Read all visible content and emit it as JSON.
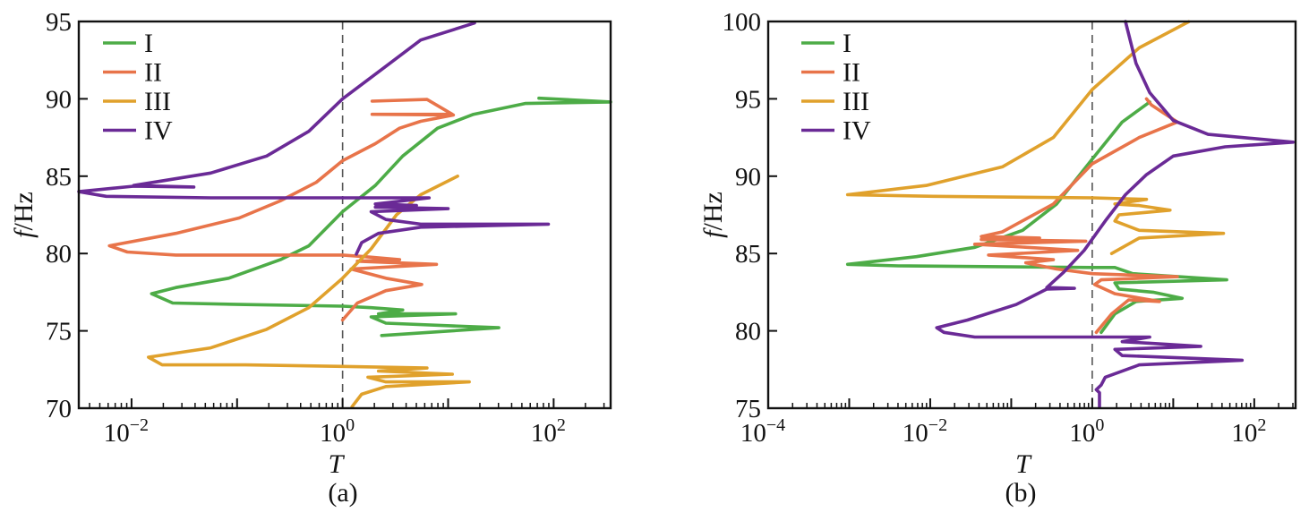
{
  "chart_data": [
    {
      "type": "line",
      "panel_caption": "(a)",
      "xlabel": "T",
      "ylabel_italic": "f",
      "ylabel_unit": "/Hz",
      "xscale": "log",
      "xlim_log10": [
        -2.5,
        2.54
      ],
      "ylim": [
        70,
        95
      ],
      "yticks": [
        "70",
        "75",
        "80",
        "85",
        "90",
        "95"
      ],
      "xticks": [
        {
          "base": "10",
          "exp": "−2",
          "log10": -2
        },
        {
          "base": "10",
          "exp": "0",
          "log10": 0
        },
        {
          "base": "10",
          "exp": "2",
          "log10": 2
        }
      ],
      "reference_line_T": 1,
      "legend_position": "top-left",
      "series": [
        {
          "name": "I",
          "color": "#4dac47",
          "points_log10T_f": [
            [
              1.86,
              90.04
            ],
            [
              2.54,
              89.8
            ],
            [
              1.73,
              89.7
            ],
            [
              1.24,
              89.0
            ],
            [
              0.9,
              88.1
            ],
            [
              0.57,
              86.3
            ],
            [
              0.31,
              84.4
            ],
            [
              0,
              82.7
            ],
            [
              -0.32,
              80.5
            ],
            [
              -0.59,
              79.6
            ],
            [
              -1.08,
              78.4
            ],
            [
              -1.58,
              77.8
            ],
            [
              -1.81,
              77.4
            ],
            [
              -1.61,
              76.8
            ],
            [
              -0.92,
              76.7
            ],
            [
              0,
              76.6
            ],
            [
              0.27,
              76.5
            ],
            [
              0.57,
              76.35
            ],
            [
              0.34,
              76.1
            ],
            [
              1.07,
              76.1
            ],
            [
              0.27,
              75.9
            ],
            [
              0.41,
              75.5
            ],
            [
              1.48,
              75.2
            ],
            [
              0.37,
              74.7
            ]
          ]
        },
        {
          "name": "II",
          "color": "#e8744a",
          "points_log10T_f": [
            [
              0.28,
              89.85
            ],
            [
              0.8,
              89.96
            ],
            [
              1.04,
              89.0
            ],
            [
              0.28,
              89.0
            ],
            [
              1.05,
              88.95
            ],
            [
              0.74,
              88.55
            ],
            [
              0.54,
              88.1
            ],
            [
              0.31,
              87.1
            ],
            [
              0,
              86.0
            ],
            [
              -0.25,
              84.6
            ],
            [
              -0.59,
              83.4
            ],
            [
              -0.98,
              82.3
            ],
            [
              -1.58,
              81.3
            ],
            [
              -2.21,
              80.5
            ],
            [
              -2.04,
              80.1
            ],
            [
              -1.58,
              79.9
            ],
            [
              0,
              79.9
            ],
            [
              0.21,
              79.8
            ],
            [
              0.54,
              79.6
            ],
            [
              0.14,
              79.5
            ],
            [
              0.89,
              79.3
            ],
            [
              0.08,
              79.0
            ],
            [
              0.41,
              78.4
            ],
            [
              0.75,
              78.0
            ],
            [
              0.41,
              77.6
            ],
            [
              0.14,
              76.8
            ],
            [
              0,
              75.7
            ]
          ]
        },
        {
          "name": "III",
          "color": "#e0a12c",
          "points_log10T_f": [
            [
              1.09,
              85.0
            ],
            [
              0.74,
              83.8
            ],
            [
              0.51,
              82.5
            ],
            [
              0.27,
              80.3
            ],
            [
              0,
              78.4
            ],
            [
              -0.32,
              76.5
            ],
            [
              -0.72,
              75.1
            ],
            [
              -1.25,
              73.9
            ],
            [
              -1.84,
              73.3
            ],
            [
              -1.71,
              72.8
            ],
            [
              -0.92,
              72.8
            ],
            [
              0,
              72.7
            ],
            [
              0.8,
              72.6
            ],
            [
              0.34,
              72.4
            ],
            [
              1.04,
              72.2
            ],
            [
              0.24,
              72.0
            ],
            [
              0.41,
              71.7
            ],
            [
              1.2,
              71.7
            ],
            [
              0.41,
              71.4
            ],
            [
              0.18,
              70.9
            ],
            [
              0.09,
              70.1
            ]
          ]
        },
        {
          "name": "IV",
          "color": "#6a2a96",
          "points_log10T_f": [
            [
              1.25,
              94.9
            ],
            [
              0.74,
              93.8
            ],
            [
              0.41,
              92.1
            ],
            [
              0,
              90.0
            ],
            [
              -0.32,
              87.9
            ],
            [
              -0.72,
              86.3
            ],
            [
              -1.25,
              85.2
            ],
            [
              -1.98,
              84.4
            ],
            [
              -1.41,
              84.3
            ],
            [
              -1.98,
              84.35
            ],
            [
              -2.5,
              84.0
            ],
            [
              -2.24,
              83.7
            ],
            [
              -1.25,
              83.6
            ],
            [
              0,
              83.6
            ],
            [
              0.82,
              83.6
            ],
            [
              0.31,
              83.2
            ],
            [
              0.7,
              83.1
            ],
            [
              0.31,
              83.0
            ],
            [
              1.0,
              82.9
            ],
            [
              0.27,
              82.7
            ],
            [
              0.41,
              82.2
            ],
            [
              0.74,
              81.9
            ],
            [
              1.95,
              81.9
            ],
            [
              0.74,
              81.7
            ],
            [
              0.34,
              81.3
            ],
            [
              0.18,
              80.7
            ],
            [
              0.13,
              79.96
            ]
          ]
        }
      ]
    },
    {
      "type": "line",
      "panel_caption": "(b)",
      "xlabel": "T",
      "ylabel_italic": "f",
      "ylabel_unit": "/Hz",
      "xscale": "log",
      "xlim_log10": [
        -4,
        2.51
      ],
      "ylim": [
        75,
        100
      ],
      "yticks": [
        "75",
        "80",
        "85",
        "90",
        "95",
        "100"
      ],
      "xticks": [
        {
          "base": "10",
          "exp": "−4",
          "log10": -4
        },
        {
          "base": "10",
          "exp": "−2",
          "log10": -2
        },
        {
          "base": "10",
          "exp": "0",
          "log10": 0
        },
        {
          "base": "10",
          "exp": "2",
          "log10": 2
        }
      ],
      "reference_line_T": 1,
      "legend_position": "top-left",
      "series": [
        {
          "name": "I",
          "color": "#4dac47",
          "points_log10T_f": [
            [
              0.71,
              94.8
            ],
            [
              0.37,
              93.5
            ],
            [
              0,
              91.1
            ],
            [
              -0.44,
              88.2
            ],
            [
              -0.86,
              86.5
            ],
            [
              -1.45,
              85.4
            ],
            [
              -2.17,
              84.8
            ],
            [
              -3.02,
              84.3
            ],
            [
              -2.39,
              84.2
            ],
            [
              0,
              84.1
            ],
            [
              0.28,
              84.1
            ],
            [
              0.5,
              83.7
            ],
            [
              1.66,
              83.3
            ],
            [
              0.28,
              83.1
            ],
            [
              0.33,
              82.7
            ],
            [
              0.75,
              82.5
            ],
            [
              1.11,
              82.1
            ],
            [
              0.54,
              81.9
            ],
            [
              0.28,
              81.1
            ],
            [
              0.11,
              79.9
            ]
          ]
        },
        {
          "name": "II",
          "color": "#e8744a",
          "points_log10T_f": [
            [
              0.67,
              95.0
            ],
            [
              0.73,
              94.6
            ],
            [
              1.05,
              93.5
            ],
            [
              0.58,
              92.5
            ],
            [
              0,
              90.8
            ],
            [
              -0.48,
              88.2
            ],
            [
              -1.11,
              86.4
            ],
            [
              -1.37,
              86.1
            ],
            [
              -0.65,
              86.0
            ],
            [
              -1.37,
              85.9
            ],
            [
              -0.08,
              85.8
            ],
            [
              -1.45,
              85.6
            ],
            [
              -0.18,
              85.2
            ],
            [
              -1.28,
              84.9
            ],
            [
              -0.48,
              84.6
            ],
            [
              -0.82,
              84.4
            ],
            [
              -0.44,
              84.0
            ],
            [
              0,
              83.7
            ],
            [
              1.05,
              83.5
            ],
            [
              0.11,
              83.3
            ],
            [
              0.03,
              83.0
            ],
            [
              0.28,
              82.4
            ],
            [
              0.83,
              81.9
            ],
            [
              0.45,
              82.0
            ],
            [
              0.24,
              81.1
            ],
            [
              0.05,
              79.9
            ]
          ]
        },
        {
          "name": "III",
          "color": "#e0a12c",
          "points_log10T_f": [
            [
              1.19,
              99.98
            ],
            [
              0.58,
              98.3
            ],
            [
              0,
              95.6
            ],
            [
              -0.48,
              92.5
            ],
            [
              -1.11,
              90.6
            ],
            [
              -2.05,
              89.4
            ],
            [
              -3.02,
              88.8
            ],
            [
              -1.96,
              88.7
            ],
            [
              0,
              88.6
            ],
            [
              0.67,
              88.5
            ],
            [
              0.28,
              88.2
            ],
            [
              0.58,
              88.1
            ],
            [
              0.96,
              87.8
            ],
            [
              0.33,
              87.5
            ],
            [
              0.28,
              87.1
            ],
            [
              0.58,
              86.5
            ],
            [
              1.62,
              86.3
            ],
            [
              0.58,
              86.0
            ],
            [
              0.24,
              85.0
            ]
          ]
        },
        {
          "name": "IV",
          "color": "#6a2a96",
          "points_log10T_f": [
            [
              0.41,
              100.0
            ],
            [
              0.54,
              97.3
            ],
            [
              0.71,
              95.4
            ],
            [
              1.0,
              93.6
            ],
            [
              1.43,
              92.7
            ],
            [
              2.48,
              92.2
            ],
            [
              1.64,
              91.9
            ],
            [
              1.0,
              91.3
            ],
            [
              0.67,
              90.1
            ],
            [
              0.41,
              88.8
            ],
            [
              0.16,
              87.1
            ],
            [
              -0.1,
              85.2
            ],
            [
              -0.35,
              83.8
            ],
            [
              -0.56,
              82.8
            ],
            [
              -0.22,
              82.75
            ],
            [
              -0.56,
              82.7
            ],
            [
              -0.94,
              81.7
            ],
            [
              -1.54,
              80.7
            ],
            [
              -1.92,
              80.2
            ],
            [
              -1.83,
              79.9
            ],
            [
              -1.45,
              79.6
            ],
            [
              0,
              79.6
            ],
            [
              0.71,
              79.6
            ],
            [
              0.37,
              79.3
            ],
            [
              0.71,
              79.2
            ],
            [
              1.34,
              79.0
            ],
            [
              0.28,
              78.8
            ],
            [
              0.37,
              78.4
            ],
            [
              1.85,
              78.1
            ],
            [
              0.58,
              77.8
            ],
            [
              0.16,
              77.0
            ],
            [
              0.11,
              76.5
            ],
            [
              0.05,
              76.2
            ],
            [
              0.09,
              76.0
            ],
            [
              0.09,
              75.1
            ]
          ]
        }
      ]
    }
  ]
}
